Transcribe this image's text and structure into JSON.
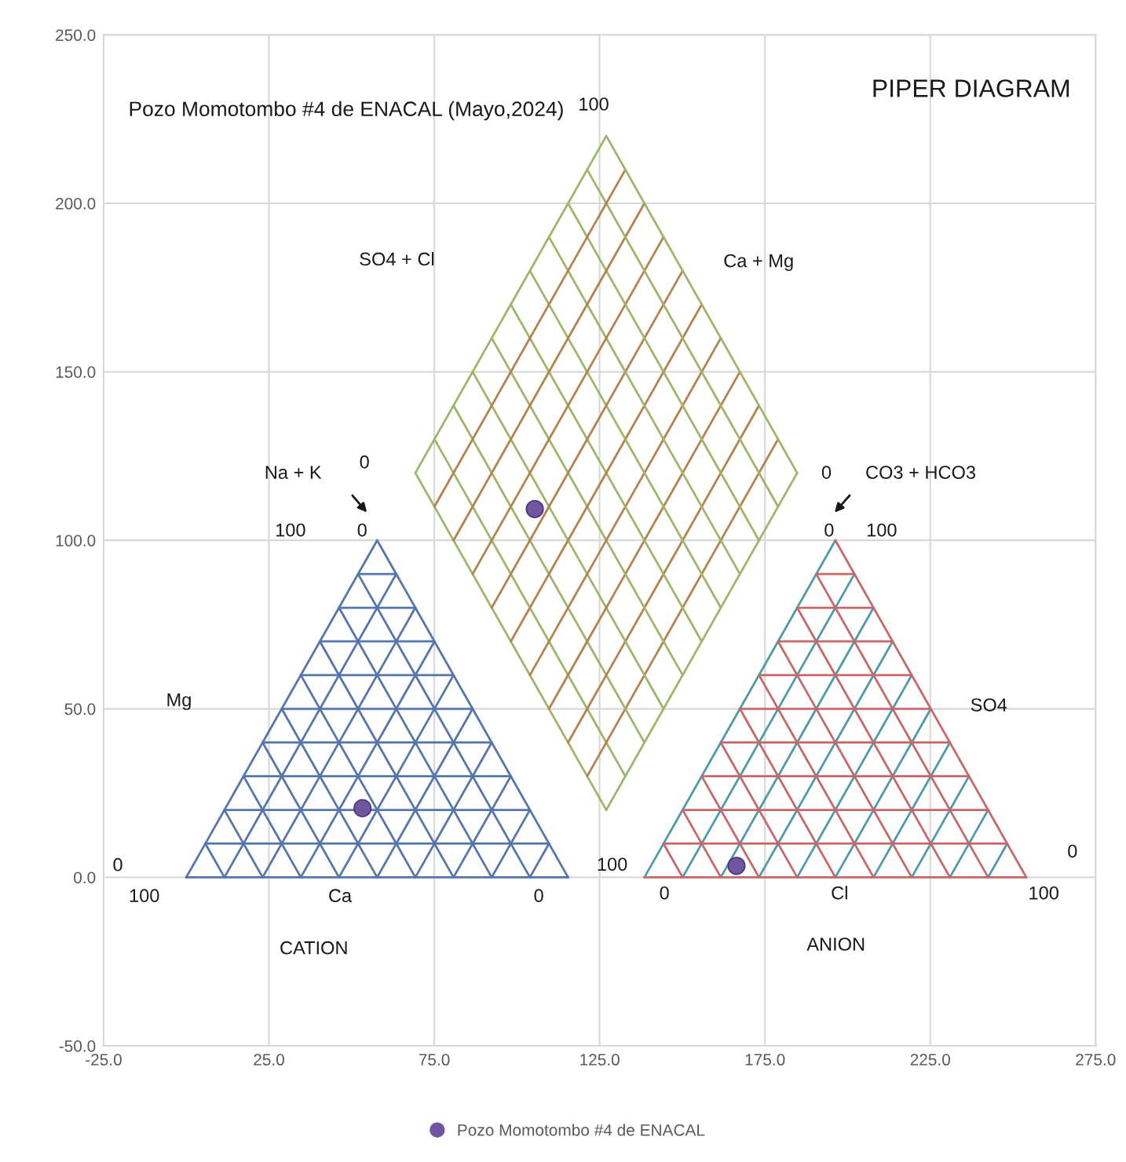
{
  "chart_data": {
    "type": "scatter",
    "title": "PIPER DIAGRAM",
    "subtitle": "Pozo Momotombo #4 de ENACAL (Mayo,2024)",
    "xlim": [
      -25,
      275
    ],
    "ylim": [
      -50,
      250
    ],
    "xticks": [
      {
        "value": -25,
        "label": "-25.0"
      },
      {
        "value": 25,
        "label": "25.0"
      },
      {
        "value": 75,
        "label": "75.0"
      },
      {
        "value": 125,
        "label": "125.0"
      },
      {
        "value": 175,
        "label": "175.0"
      },
      {
        "value": 225,
        "label": "225.0"
      },
      {
        "value": 275,
        "label": "275.0"
      }
    ],
    "yticks": [
      {
        "value": -50,
        "label": "-50.0"
      },
      {
        "value": 0,
        "label": "0.0"
      },
      {
        "value": 50,
        "label": "50.0"
      },
      {
        "value": 100,
        "label": "100.0"
      },
      {
        "value": 150,
        "label": "150.0"
      },
      {
        "value": 200,
        "label": "200.0"
      },
      {
        "value": 250,
        "label": "250.0"
      }
    ],
    "grid": true,
    "legend": "bottom",
    "marker": "circle",
    "series": [
      {
        "name": "Pozo Momotombo #4 de ENACAL",
        "color": "#7056a0",
        "x": [
          53.3,
          105.4,
          166.4
        ],
        "values": [
          20.5,
          109.3,
          3.4
        ]
      }
    ],
    "annotations": [
      "Na + K",
      "0",
      "100",
      "0",
      "Mg",
      "0",
      "100",
      "Ca",
      "0",
      "CATION",
      "SO4 + Cl",
      "100",
      "Ca + Mg",
      "0",
      "CO3 + HCO3",
      "0",
      "100",
      "SO4",
      "0",
      "100",
      "0",
      "Cl",
      "100",
      "ANION"
    ]
  }
}
